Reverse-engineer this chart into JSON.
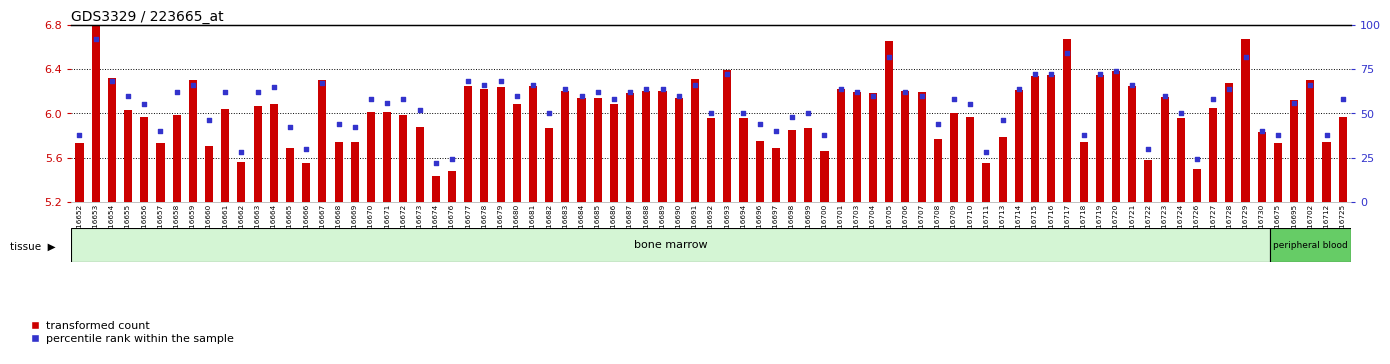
{
  "title": "GDS3329 / 223665_at",
  "ylim_left": [
    5.2,
    6.8
  ],
  "ylim_right": [
    0,
    100
  ],
  "yticks_left": [
    5.2,
    5.6,
    6.0,
    6.4,
    6.8
  ],
  "yticks_right": [
    0,
    25,
    50,
    75,
    100
  ],
  "bar_color": "#cc0000",
  "dot_color": "#3333cc",
  "bg_color": "#ffffff",
  "axis_color": "#cc0000",
  "right_axis_color": "#3333cc",
  "samples": [
    "GSM316652",
    "GSM316653",
    "GSM316654",
    "GSM316655",
    "GSM316656",
    "GSM316657",
    "GSM316658",
    "GSM316659",
    "GSM316660",
    "GSM316661",
    "GSM316662",
    "GSM316663",
    "GSM316664",
    "GSM316665",
    "GSM316666",
    "GSM316667",
    "GSM316668",
    "GSM316669",
    "GSM316670",
    "GSM316671",
    "GSM316672",
    "GSM316673",
    "GSM316674",
    "GSM316676",
    "GSM316677",
    "GSM316678",
    "GSM316679",
    "GSM316680",
    "GSM316681",
    "GSM316682",
    "GSM316683",
    "GSM316684",
    "GSM316685",
    "GSM316686",
    "GSM316687",
    "GSM316688",
    "GSM316689",
    "GSM316690",
    "GSM316691",
    "GSM316692",
    "GSM316693",
    "GSM316694",
    "GSM316696",
    "GSM316697",
    "GSM316698",
    "GSM316699",
    "GSM316700",
    "GSM316701",
    "GSM316703",
    "GSM316704",
    "GSM316705",
    "GSM316706",
    "GSM316707",
    "GSM316708",
    "GSM316709",
    "GSM316710",
    "GSM316711",
    "GSM316713",
    "GSM316714",
    "GSM316715",
    "GSM316716",
    "GSM316717",
    "GSM316718",
    "GSM316719",
    "GSM316720",
    "GSM316721",
    "GSM316722",
    "GSM316723",
    "GSM316724",
    "GSM316726",
    "GSM316727",
    "GSM316728",
    "GSM316729",
    "GSM316730",
    "GSM316675",
    "GSM316695",
    "GSM316702",
    "GSM316712",
    "GSM316725"
  ],
  "transformed_counts": [
    5.73,
    6.79,
    6.32,
    6.03,
    5.97,
    5.73,
    5.98,
    6.3,
    5.7,
    6.04,
    5.56,
    6.07,
    6.08,
    5.69,
    5.55,
    6.3,
    5.74,
    5.74,
    6.01,
    6.01,
    5.98,
    5.88,
    5.43,
    5.48,
    6.25,
    6.22,
    6.24,
    6.08,
    6.25,
    5.87,
    6.2,
    6.14,
    6.14,
    6.08,
    6.18,
    6.2,
    6.2,
    6.14,
    6.31,
    5.96,
    6.39,
    5.96,
    5.75,
    5.69,
    5.85,
    5.87,
    5.66,
    6.22,
    6.19,
    6.18,
    6.65,
    6.2,
    6.19,
    5.77,
    6.0,
    5.97,
    5.55,
    5.79,
    6.21,
    6.34,
    6.35,
    6.67,
    5.74,
    6.35,
    6.38,
    6.25,
    5.58,
    6.15,
    5.96,
    5.5,
    6.05,
    6.27,
    6.67,
    5.83,
    5.73,
    6.12,
    6.3,
    5.74,
    5.97
  ],
  "percentile_ranks": [
    38,
    92,
    68,
    60,
    55,
    40,
    62,
    66,
    46,
    62,
    28,
    62,
    65,
    42,
    30,
    67,
    44,
    42,
    58,
    56,
    58,
    52,
    22,
    24,
    68,
    66,
    68,
    60,
    66,
    50,
    64,
    60,
    62,
    58,
    62,
    64,
    64,
    60,
    66,
    50,
    72,
    50,
    44,
    40,
    48,
    50,
    38,
    64,
    62,
    60,
    82,
    62,
    60,
    44,
    58,
    55,
    28,
    46,
    64,
    72,
    72,
    84,
    38,
    72,
    74,
    66,
    30,
    60,
    50,
    24,
    58,
    64,
    82,
    40,
    38,
    56,
    66,
    38,
    58
  ],
  "bone_marrow_count": 74,
  "peripheral_blood_count": 5,
  "tissue_label_bone_marrow": "bone marrow",
  "tissue_label_peripheral": "peripheral blood",
  "legend_red": "transformed count",
  "legend_blue": "percentile rank within the sample"
}
